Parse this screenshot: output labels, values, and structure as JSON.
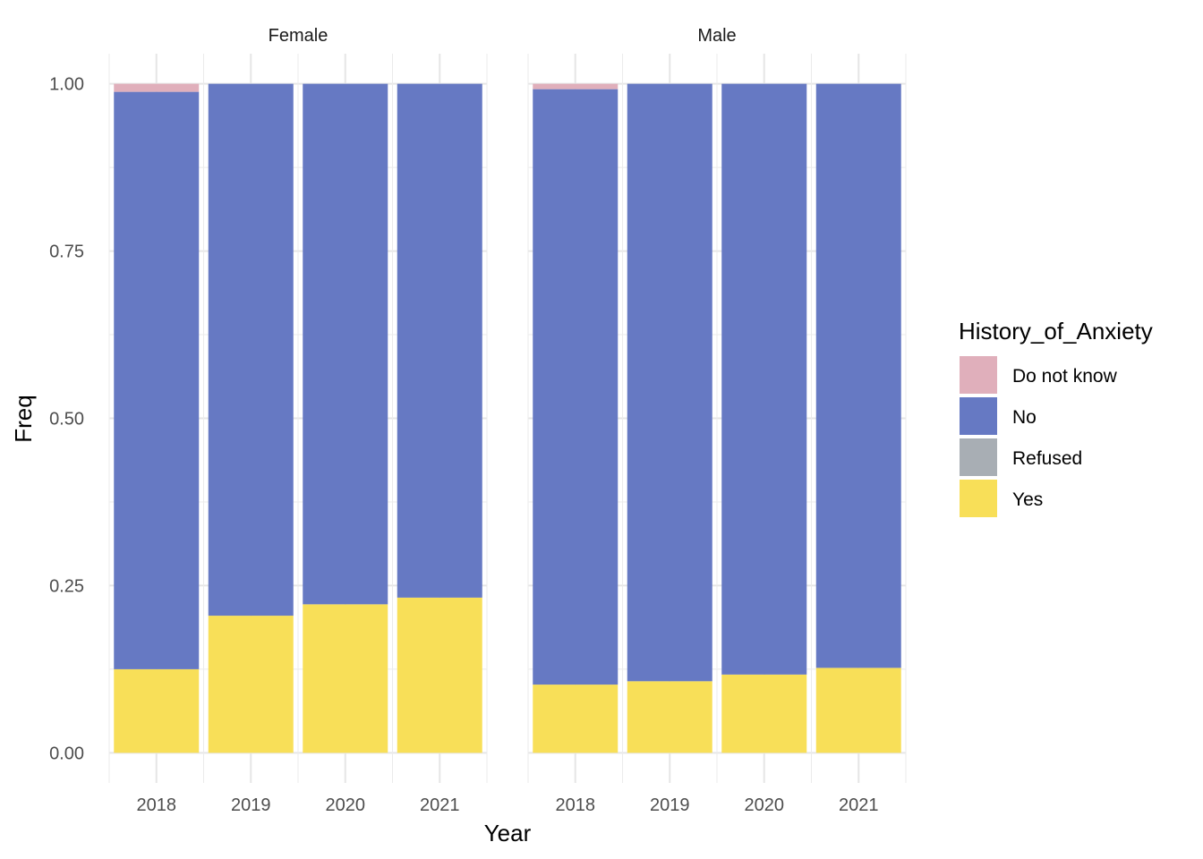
{
  "chart_data": {
    "type": "bar",
    "stacked": true,
    "facet_by": "Sex",
    "facets": [
      {
        "name": "Female",
        "categories": [
          "2018",
          "2019",
          "2020",
          "2021"
        ],
        "series": [
          {
            "name": "Yes",
            "values": [
              0.125,
              0.205,
              0.222,
              0.232
            ]
          },
          {
            "name": "Refused",
            "values": [
              0.0,
              0.0,
              0.0,
              0.0
            ]
          },
          {
            "name": "No",
            "values": [
              0.863,
              0.795,
              0.778,
              0.768
            ]
          },
          {
            "name": "Do not know",
            "values": [
              0.012,
              0.0,
              0.0,
              0.0
            ]
          }
        ]
      },
      {
        "name": "Male",
        "categories": [
          "2018",
          "2019",
          "2020",
          "2021"
        ],
        "series": [
          {
            "name": "Yes",
            "values": [
              0.102,
              0.107,
              0.117,
              0.127
            ]
          },
          {
            "name": "Refused",
            "values": [
              0.0,
              0.0,
              0.0,
              0.0
            ]
          },
          {
            "name": "No",
            "values": [
              0.89,
              0.893,
              0.883,
              0.873
            ]
          },
          {
            "name": "Do not know",
            "values": [
              0.008,
              0.0,
              0.0,
              0.0
            ]
          }
        ]
      }
    ],
    "xlabel": "Year",
    "ylabel": "Freq",
    "ylim": [
      -0.045,
      1.045
    ],
    "yticks": [
      0.0,
      0.25,
      0.5,
      0.75,
      1.0
    ],
    "ytick_labels": [
      "0.00",
      "0.25",
      "0.50",
      "0.75",
      "1.00"
    ],
    "grid": true,
    "legend": {
      "title": "History_of_Anxiety",
      "position": "right",
      "entries": [
        "Do not know",
        "No",
        "Refused",
        "Yes"
      ]
    },
    "colors": {
      "Do not know": "#e0afbb",
      "No": "#6679c3",
      "Refused": "#a8aeb4",
      "Yes": "#f8df58"
    }
  }
}
